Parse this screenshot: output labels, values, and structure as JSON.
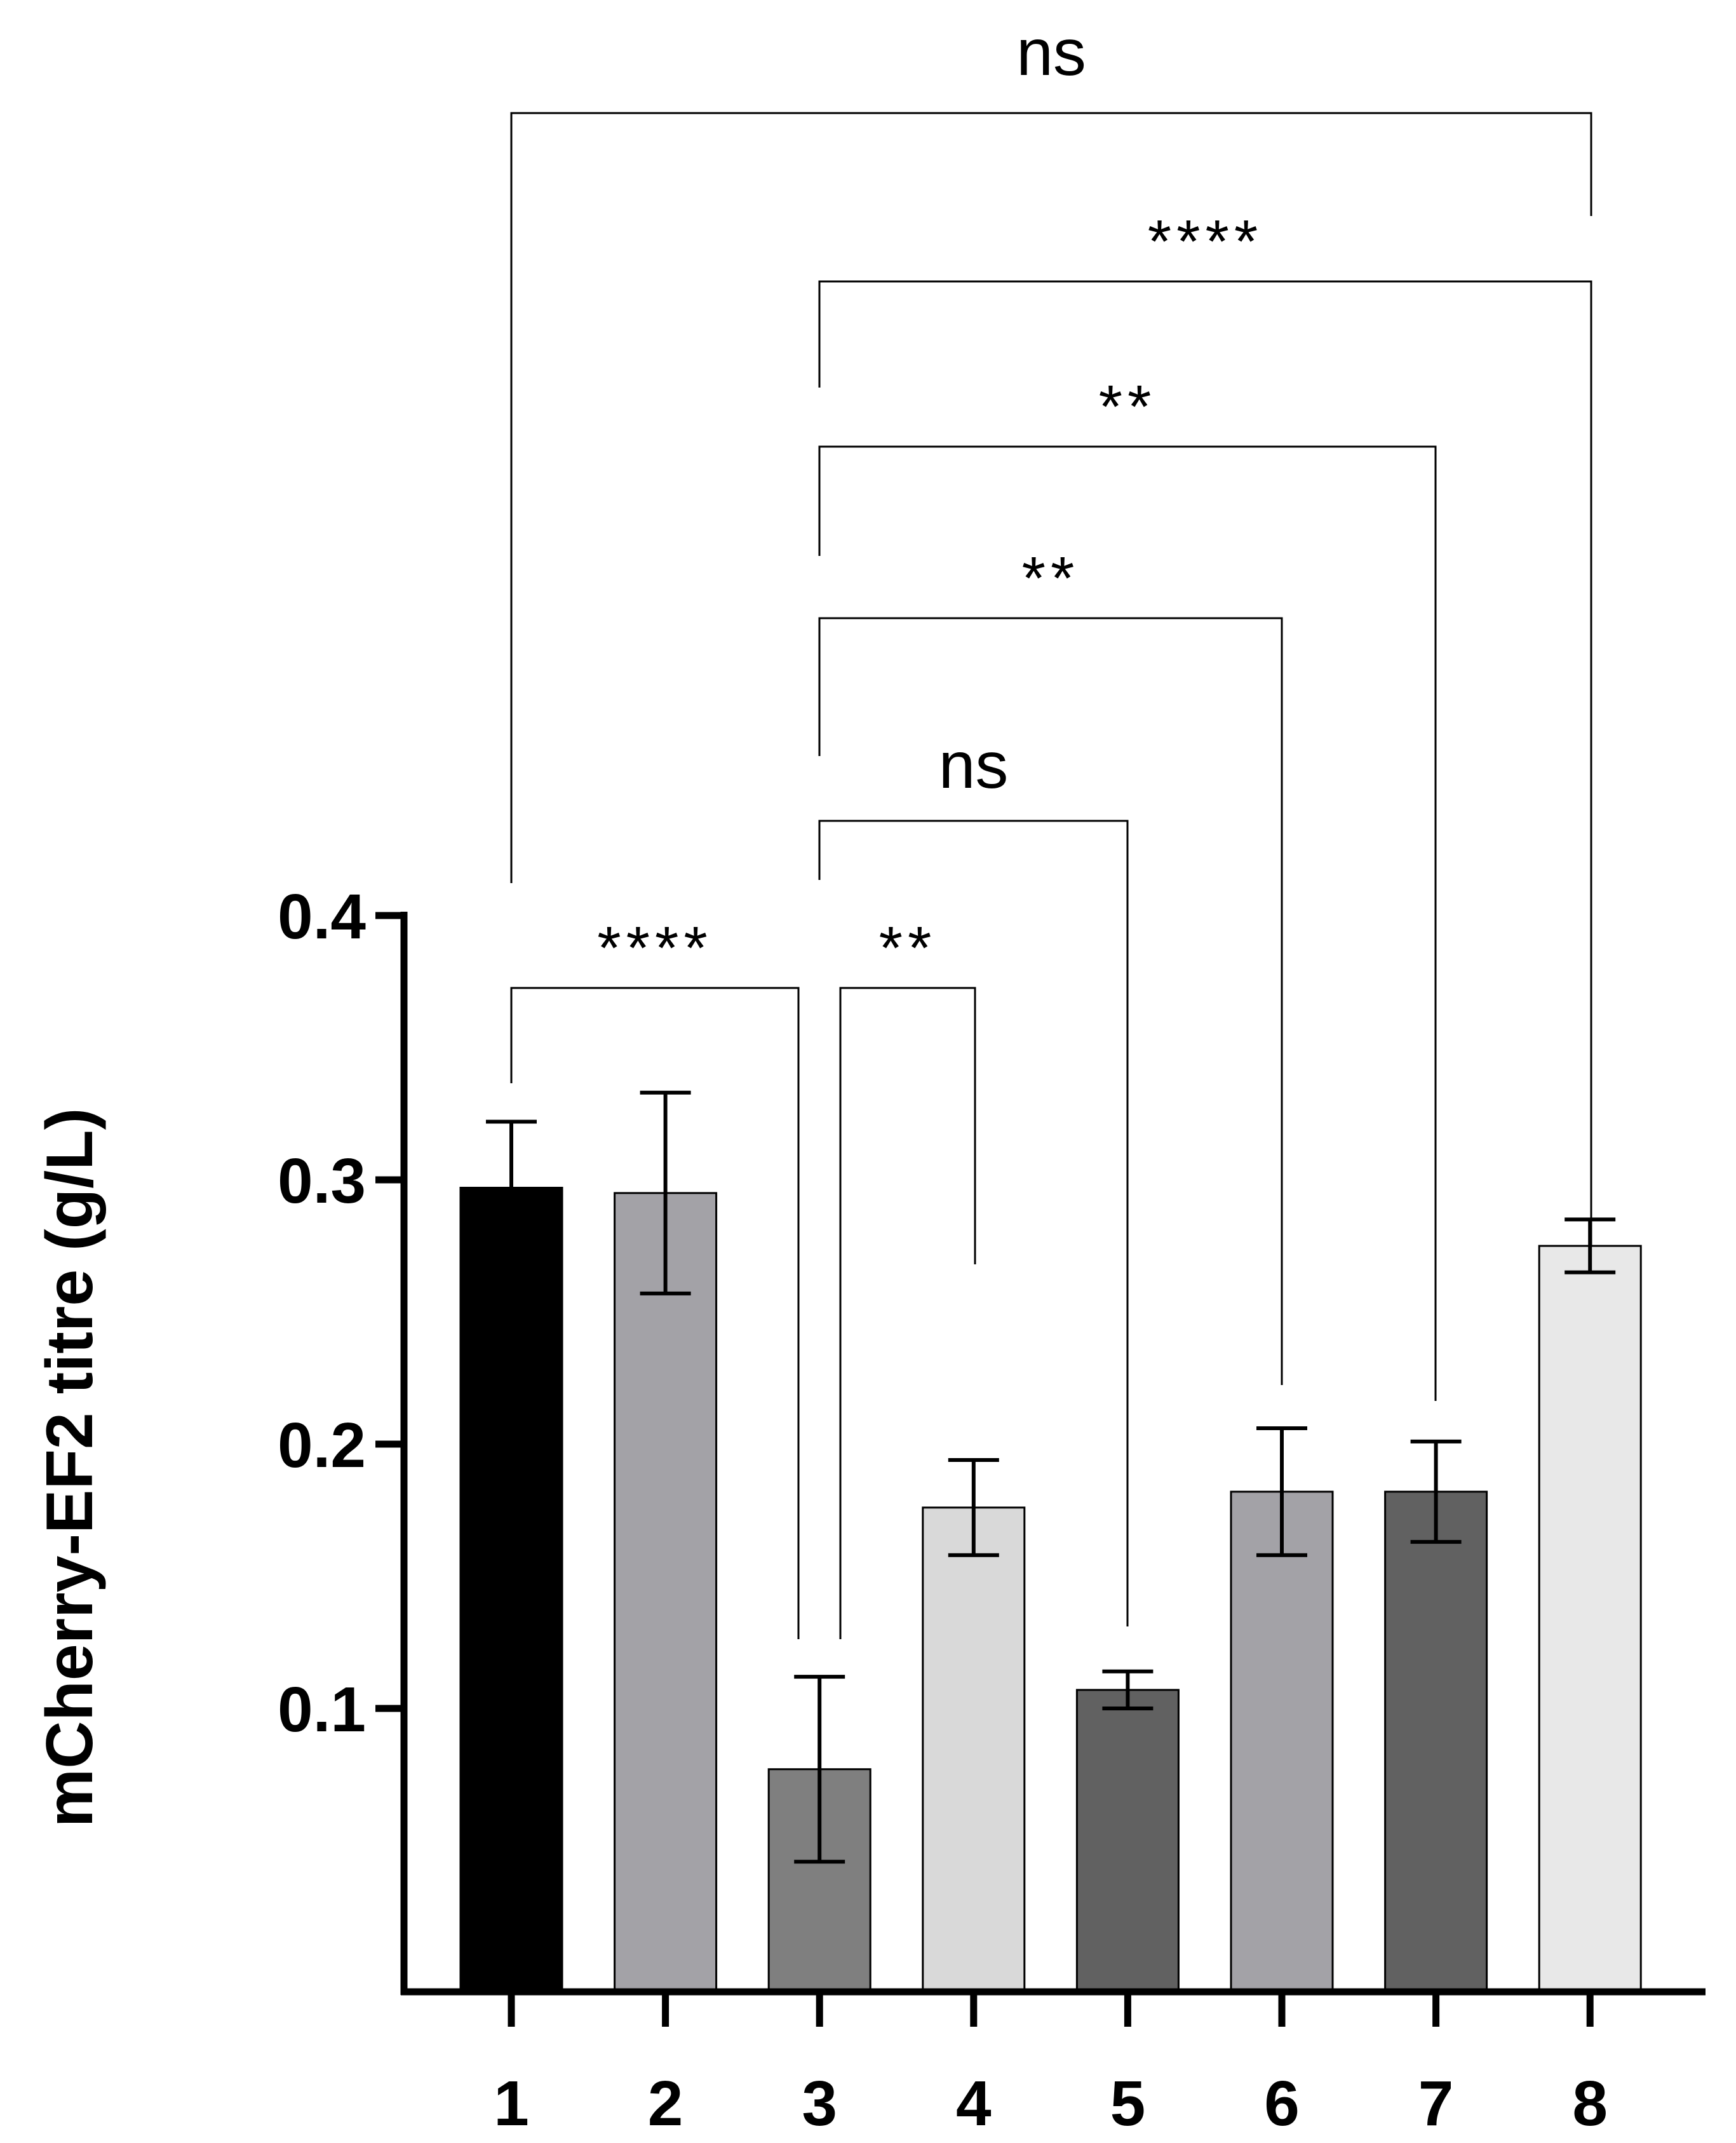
{
  "chart_data": {
    "type": "bar",
    "title": "",
    "xlabel": "",
    "ylabel": "mCherry-EF2 titre (g/L)",
    "ylim": [
      0,
      0.4
    ],
    "yticks": [
      0.1,
      0.2,
      0.3,
      0.4
    ],
    "ytick_labels": [
      "0.1",
      "0.2",
      "0.3",
      "0.4"
    ],
    "categories": [
      "1",
      "2",
      "3",
      "4",
      "5",
      "6",
      "7",
      "8"
    ],
    "values": [
      0.297,
      0.295,
      0.077,
      0.176,
      0.107,
      0.182,
      0.182,
      0.275
    ],
    "errors": [
      0.025,
      0.038,
      0.035,
      0.018,
      0.007,
      0.024,
      0.019,
      0.01
    ],
    "colors": [
      "#000000",
      "#a3a2a7",
      "#7f7f7f",
      "#d9d9d9",
      "#616161",
      "#a3a2a7",
      "#616161",
      "#e8e8e8"
    ],
    "significance": [
      {
        "from": "1",
        "to": "3",
        "label": "****"
      },
      {
        "from": "3",
        "to": "4",
        "label": "**"
      },
      {
        "from": "3",
        "to": "5",
        "label": "ns"
      },
      {
        "from": "3",
        "to": "6",
        "label": "**"
      },
      {
        "from": "3",
        "to": "7",
        "label": "**"
      },
      {
        "from": "3",
        "to": "8",
        "label": "****"
      },
      {
        "from": "1",
        "to": "8",
        "label": "ns"
      }
    ]
  }
}
